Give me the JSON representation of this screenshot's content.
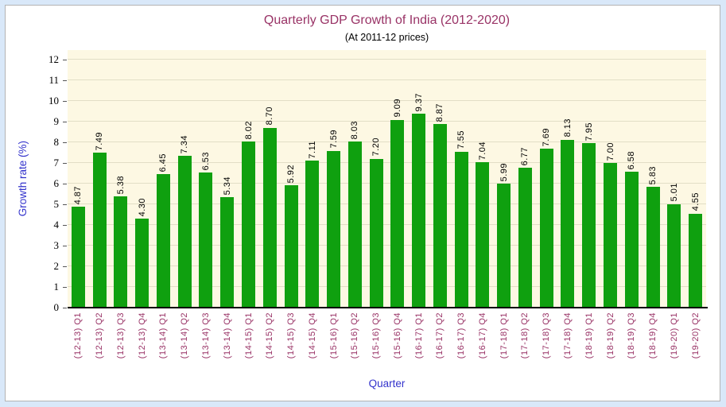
{
  "window": {
    "background_color": "#d9e8f9",
    "panel_color": "#ffffff",
    "panel_border_color": "#b3b3b3"
  },
  "chart_data": {
    "type": "bar",
    "title": "Quarterly GDP Growth of India (2012-2020)",
    "subtitle": "(At 2011-12 prices)",
    "xlabel": "Quarter",
    "ylabel": "Growth rate (%)",
    "ylim": [
      0,
      12
    ],
    "ytick_step": 1,
    "grid": true,
    "legend": false,
    "bar_color": "#0fa00f",
    "plot_bg": "#fdf8e3",
    "gridline_color": "#e2dec6",
    "title_color": "#993366",
    "axis_title_color": "#3333cc",
    "category_label_color": "#993366",
    "value_label_color": "#000000",
    "categories": [
      "(12-13) Q1",
      "(12-13) Q2",
      "(12-13) Q3",
      "(12-13) Q4",
      "(13-14) Q1",
      "(13-14) Q2",
      "(13-14) Q3",
      "(13-14) Q4",
      "(14-15) Q1",
      "(14-15) Q2",
      "(14-15) Q3",
      "(14-15) Q4",
      "(15-16) Q1",
      "(15-16) Q2",
      "(15-16) Q3",
      "(15-16) Q4",
      "(16-17) Q1",
      "(16-17) Q2",
      "(16-17) Q3",
      "(16-17) Q4",
      "(17-18) Q1",
      "(17-18) Q2",
      "(17-18) Q3",
      "(17-18) Q4",
      "(18-19) Q1",
      "(18-19) Q2",
      "(18-19) Q3",
      "(18-19) Q4",
      "(19-20) Q1",
      "(19-20) Q2"
    ],
    "values": [
      4.87,
      7.49,
      5.38,
      4.3,
      6.45,
      7.34,
      6.53,
      5.34,
      8.02,
      8.7,
      5.92,
      7.11,
      7.59,
      8.03,
      7.2,
      9.09,
      9.37,
      8.87,
      7.55,
      7.04,
      5.99,
      6.77,
      7.69,
      8.13,
      7.95,
      7.0,
      6.58,
      5.83,
      5.01,
      4.55
    ]
  }
}
